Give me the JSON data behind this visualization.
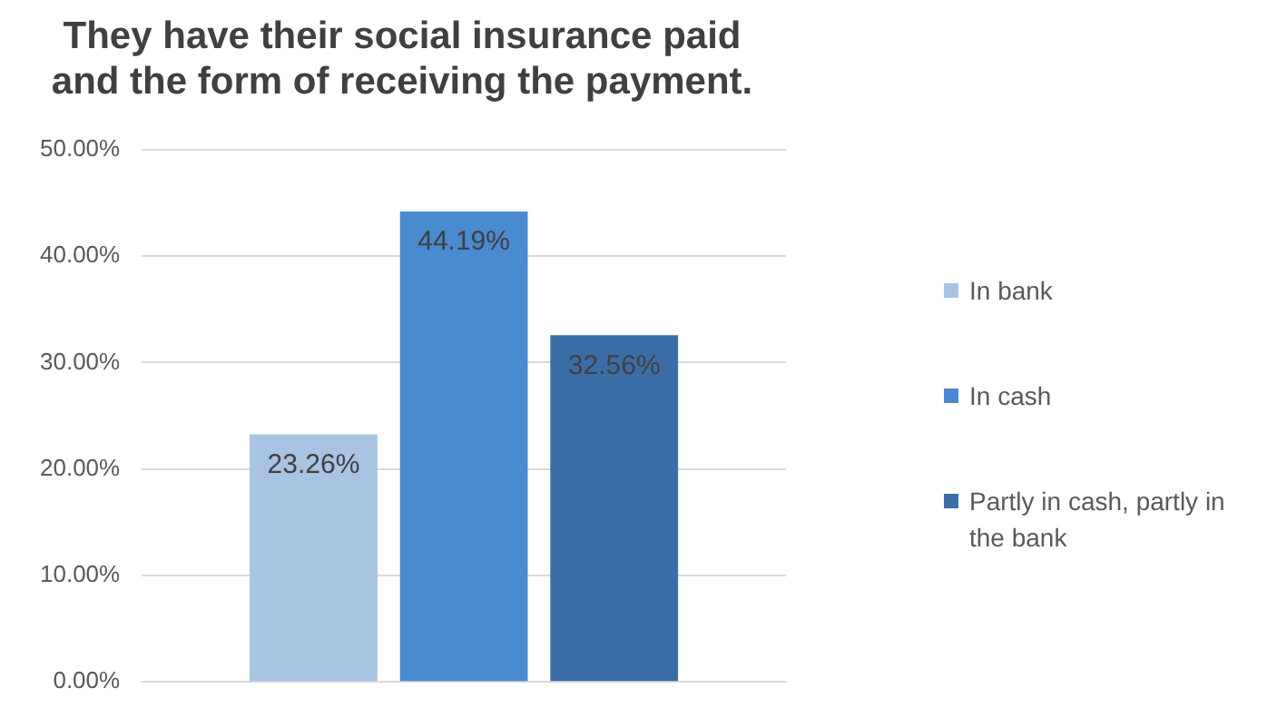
{
  "chart_data": {
    "type": "bar",
    "title": "They have their social insurance paid\nand the form of receiving the payment.",
    "categories": [
      null
    ],
    "series": [
      {
        "name": "In bank",
        "color": "#a9c3e3",
        "values": [
          23.26
        ],
        "value_labels": [
          "23.26%"
        ]
      },
      {
        "name": "In cash",
        "color": "#4a8ad0",
        "values": [
          44.19
        ],
        "value_labels": [
          "44.19%"
        ]
      },
      {
        "name": "Partly in cash, partly in the bank",
        "color": "#3b6ea6",
        "values": [
          32.56
        ],
        "value_labels": [
          "32.56%"
        ]
      }
    ],
    "ylim": [
      0,
      50
    ],
    "yticks": [
      {
        "value": 0,
        "label": "0.00%"
      },
      {
        "value": 10,
        "label": "10.00%"
      },
      {
        "value": 20,
        "label": "20.00%"
      },
      {
        "value": 30,
        "label": "30.00%"
      },
      {
        "value": 40,
        "label": "40.00%"
      },
      {
        "value": 50,
        "label": "50.00%"
      }
    ],
    "grid": "y",
    "legend": "right"
  }
}
